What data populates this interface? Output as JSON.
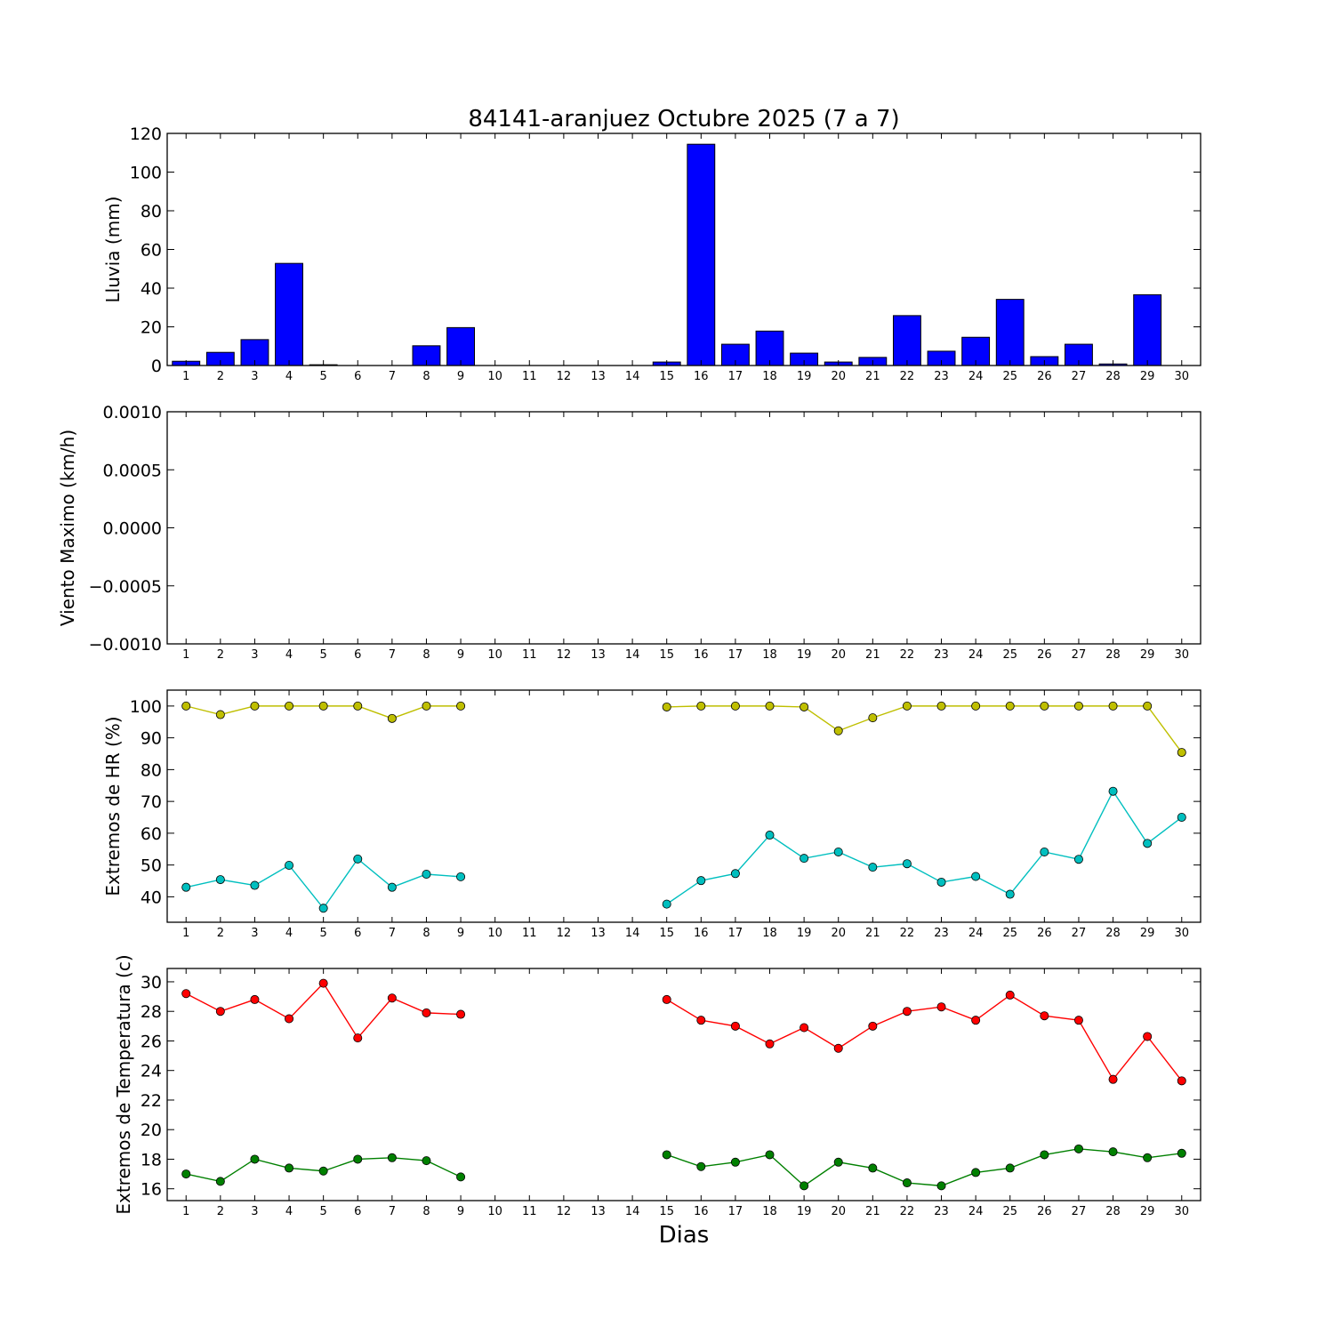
{
  "figure": {
    "title": "84141-aranjuez Octubre 2025  (7 a 7)",
    "xlabel": "Dias"
  },
  "chart_data": [
    {
      "type": "bar",
      "ylabel": "Lluvia (mm)",
      "ylim": [
        0,
        120
      ],
      "yticks": [
        "0",
        "20",
        "40",
        "60",
        "80",
        "100",
        "120"
      ],
      "ytick_values": [
        0,
        20,
        40,
        60,
        80,
        100,
        120
      ],
      "categories": [
        "1",
        "2",
        "3",
        "4",
        "5",
        "6",
        "7",
        "8",
        "9",
        "10",
        "11",
        "12",
        "13",
        "14",
        "15",
        "16",
        "17",
        "18",
        "19",
        "20",
        "21",
        "22",
        "23",
        "24",
        "25",
        "26",
        "27",
        "28",
        "29",
        "30"
      ],
      "values": [
        2.2,
        6.8,
        13.4,
        52.8,
        0.4,
        0.0,
        0.0,
        10.2,
        19.6,
        0.0,
        0.0,
        0.0,
        0.0,
        0.0,
        1.8,
        114.4,
        11.0,
        17.8,
        6.4,
        1.8,
        4.2,
        25.8,
        7.4,
        14.6,
        34.2,
        4.6,
        11.0,
        0.8,
        36.6,
        0.0
      ],
      "color": "#0000ff",
      "grid": false
    },
    {
      "type": "line",
      "ylabel": "Viento Maximo (km/h)",
      "ylim": [
        -0.001,
        0.001
      ],
      "yticks": [
        "−0.0010",
        "−0.0005",
        "0.0000",
        "0.0005",
        "0.0010"
      ],
      "ytick_values": [
        -0.001,
        -0.0005,
        0,
        0.0005,
        0.001
      ],
      "categories": [
        "1",
        "2",
        "3",
        "4",
        "5",
        "6",
        "7",
        "8",
        "9",
        "10",
        "11",
        "12",
        "13",
        "14",
        "15",
        "16",
        "17",
        "18",
        "19",
        "20",
        "21",
        "22",
        "23",
        "24",
        "25",
        "26",
        "27",
        "28",
        "29",
        "30"
      ],
      "series": [],
      "grid": false
    },
    {
      "type": "line",
      "ylabel": "Extremos de HR (%)",
      "ylim": [
        32,
        105
      ],
      "yticks": [
        "40",
        "50",
        "60",
        "70",
        "80",
        "90",
        "100"
      ],
      "ytick_values": [
        40,
        50,
        60,
        70,
        80,
        90,
        100
      ],
      "categories": [
        "1",
        "2",
        "3",
        "4",
        "5",
        "6",
        "7",
        "8",
        "9",
        "10",
        "11",
        "12",
        "13",
        "14",
        "15",
        "16",
        "17",
        "18",
        "19",
        "20",
        "21",
        "22",
        "23",
        "24",
        "25",
        "26",
        "27",
        "28",
        "29",
        "30"
      ],
      "series": [
        {
          "color": "#bfbf00",
          "values": [
            100,
            97.3,
            100,
            100,
            100,
            100,
            96.1,
            100,
            100,
            null,
            null,
            null,
            null,
            null,
            99.7,
            100,
            100,
            100,
            99.7,
            92.2,
            96.3,
            100,
            100,
            100,
            100,
            100,
            100,
            100,
            100,
            85.4
          ]
        },
        {
          "color": "#00bfbf",
          "values": [
            43.0,
            45.4,
            43.6,
            49.9,
            36.4,
            51.9,
            43.0,
            47.1,
            46.3,
            null,
            null,
            null,
            null,
            null,
            37.7,
            45.1,
            47.3,
            59.4,
            52.1,
            54.1,
            49.3,
            50.4,
            44.6,
            46.4,
            40.8,
            54.1,
            51.8,
            73.2,
            56.8,
            65.0
          ]
        }
      ],
      "grid": false
    },
    {
      "type": "line",
      "ylabel": "Extremos de Temperatura (c)",
      "ylim": [
        15.2,
        30.9
      ],
      "yticks": [
        "16",
        "18",
        "20",
        "22",
        "24",
        "26",
        "28",
        "30"
      ],
      "ytick_values": [
        16,
        18,
        20,
        22,
        24,
        26,
        28,
        30
      ],
      "categories": [
        "1",
        "2",
        "3",
        "4",
        "5",
        "6",
        "7",
        "8",
        "9",
        "10",
        "11",
        "12",
        "13",
        "14",
        "15",
        "16",
        "17",
        "18",
        "19",
        "20",
        "21",
        "22",
        "23",
        "24",
        "25",
        "26",
        "27",
        "28",
        "29",
        "30"
      ],
      "series": [
        {
          "color": "#ff0000",
          "values": [
            29.2,
            28.0,
            28.8,
            27.5,
            29.9,
            26.2,
            28.9,
            27.9,
            27.8,
            null,
            null,
            null,
            null,
            null,
            28.8,
            27.4,
            27.0,
            25.8,
            26.9,
            25.5,
            27.0,
            28.0,
            28.3,
            27.4,
            29.1,
            27.7,
            27.4,
            23.4,
            26.3,
            23.3
          ]
        },
        {
          "color": "#008000",
          "values": [
            17.0,
            16.5,
            18.0,
            17.4,
            17.2,
            18.0,
            18.1,
            17.9,
            16.8,
            null,
            null,
            null,
            null,
            null,
            18.3,
            17.5,
            17.8,
            18.3,
            16.2,
            17.8,
            17.4,
            16.4,
            16.2,
            17.1,
            17.4,
            18.3,
            18.7,
            18.5,
            18.1,
            18.4
          ]
        }
      ],
      "grid": false
    }
  ]
}
